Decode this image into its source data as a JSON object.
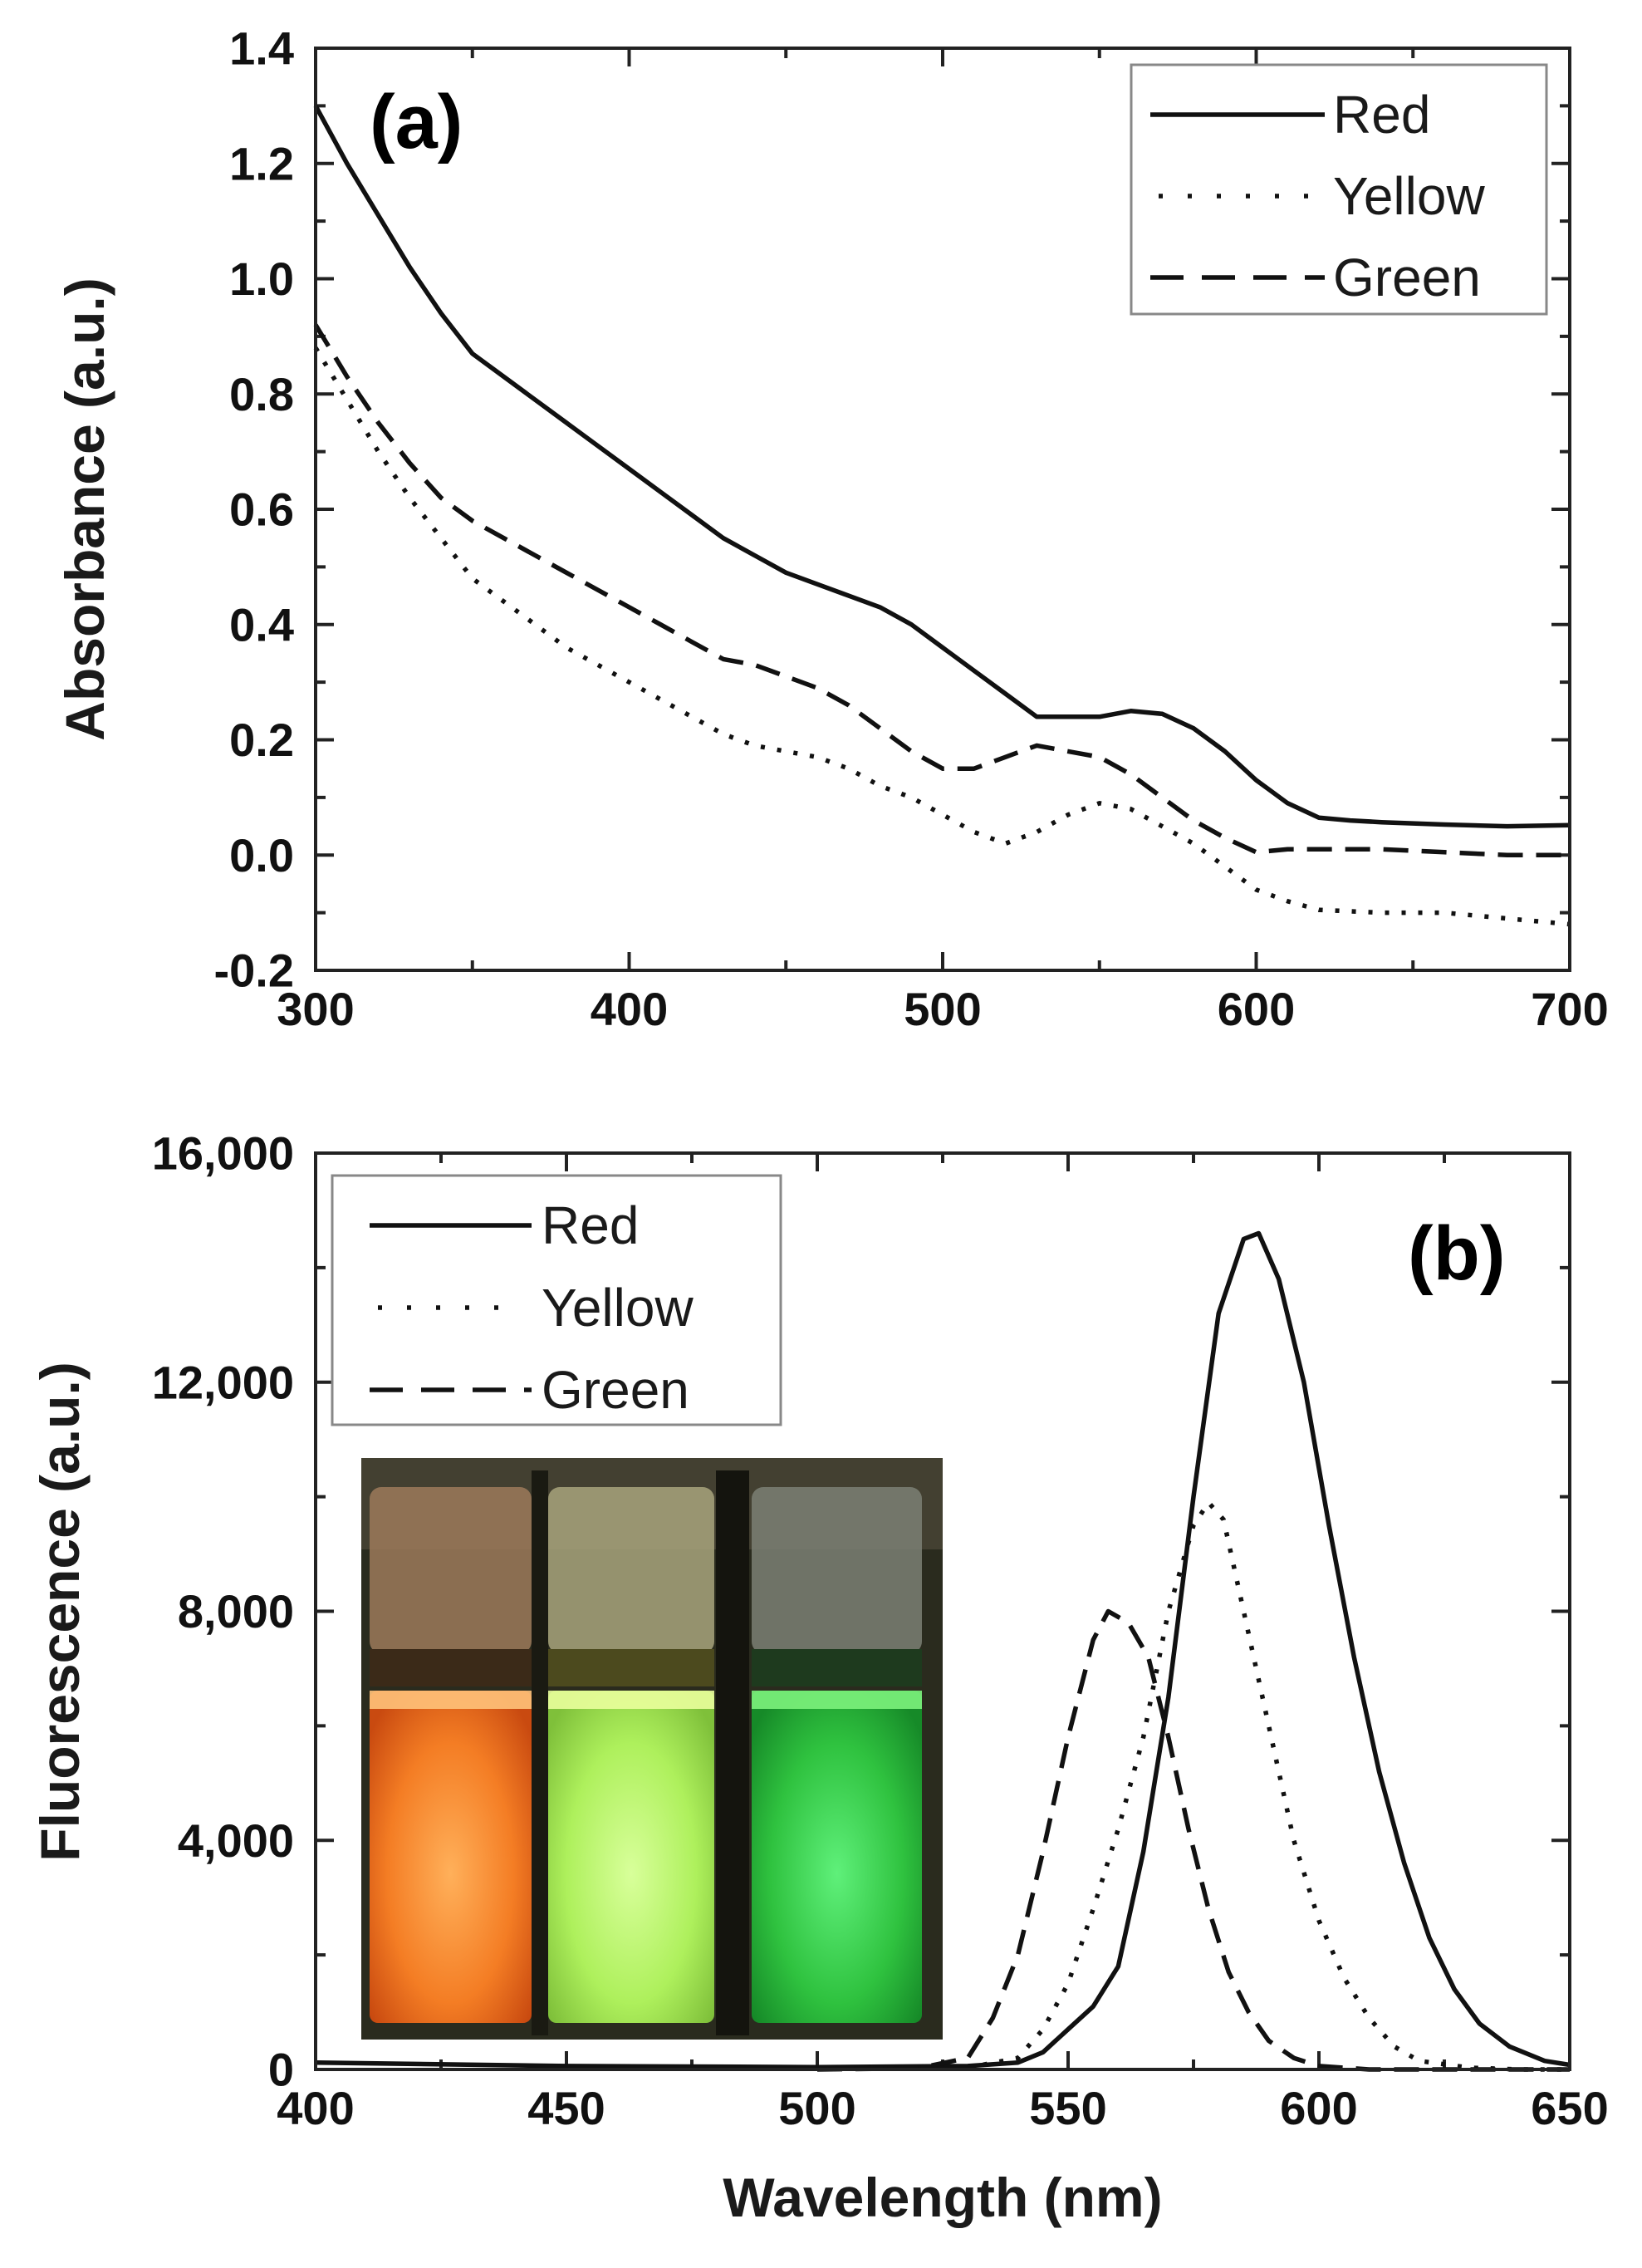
{
  "colors": {
    "line": "#111111",
    "vial_red": "#f07820",
    "vial_yellow": "#b6f25a",
    "vial_green": "#2fc23f"
  },
  "chart_data": [
    {
      "type": "line",
      "panel_label": "(a)",
      "title": "",
      "xlabel": "",
      "ylabel": "Absorbance (a.u.)",
      "xlim": [
        300,
        700
      ],
      "ylim": [
        -0.2,
        1.4
      ],
      "xticks": [
        300,
        400,
        500,
        600,
        700
      ],
      "xtick_labels": [
        "300",
        "400",
        "500",
        "600",
        "700"
      ],
      "yticks": [
        -0.2,
        0.0,
        0.2,
        0.4,
        0.6,
        0.8,
        1.0,
        1.2,
        1.4
      ],
      "ytick_labels": [
        "-0.2",
        "0.0",
        "0.2",
        "0.4",
        "0.6",
        "0.8",
        "1.0",
        "1.2",
        "1.4"
      ],
      "legend_position": "top-right",
      "series": [
        {
          "name": "Red",
          "style": "solid",
          "points": [
            [
              300,
              1.3
            ],
            [
              310,
              1.2
            ],
            [
              320,
              1.11
            ],
            [
              330,
              1.02
            ],
            [
              340,
              0.94
            ],
            [
              350,
              0.87
            ],
            [
              360,
              0.83
            ],
            [
              370,
              0.79
            ],
            [
              380,
              0.75
            ],
            [
              390,
              0.71
            ],
            [
              400,
              0.67
            ],
            [
              410,
              0.63
            ],
            [
              420,
              0.59
            ],
            [
              430,
              0.55
            ],
            [
              440,
              0.52
            ],
            [
              450,
              0.49
            ],
            [
              460,
              0.47
            ],
            [
              470,
              0.45
            ],
            [
              480,
              0.43
            ],
            [
              490,
              0.4
            ],
            [
              500,
              0.36
            ],
            [
              510,
              0.32
            ],
            [
              520,
              0.28
            ],
            [
              530,
              0.24
            ],
            [
              540,
              0.24
            ],
            [
              550,
              0.24
            ],
            [
              560,
              0.25
            ],
            [
              570,
              0.245
            ],
            [
              580,
              0.22
            ],
            [
              590,
              0.18
            ],
            [
              600,
              0.13
            ],
            [
              610,
              0.09
            ],
            [
              620,
              0.065
            ],
            [
              630,
              0.06
            ],
            [
              640,
              0.057
            ],
            [
              660,
              0.053
            ],
            [
              680,
              0.05
            ],
            [
              700,
              0.052
            ]
          ]
        },
        {
          "name": "Yellow",
          "style": "dotted",
          "points": [
            [
              300,
              0.88
            ],
            [
              310,
              0.79
            ],
            [
              320,
              0.7
            ],
            [
              330,
              0.62
            ],
            [
              340,
              0.55
            ],
            [
              350,
              0.48
            ],
            [
              360,
              0.44
            ],
            [
              370,
              0.4
            ],
            [
              380,
              0.36
            ],
            [
              390,
              0.33
            ],
            [
              400,
              0.3
            ],
            [
              410,
              0.27
            ],
            [
              420,
              0.24
            ],
            [
              430,
              0.21
            ],
            [
              440,
              0.19
            ],
            [
              450,
              0.18
            ],
            [
              460,
              0.17
            ],
            [
              470,
              0.15
            ],
            [
              480,
              0.12
            ],
            [
              490,
              0.1
            ],
            [
              500,
              0.07
            ],
            [
              510,
              0.04
            ],
            [
              520,
              0.02
            ],
            [
              530,
              0.04
            ],
            [
              540,
              0.07
            ],
            [
              550,
              0.09
            ],
            [
              560,
              0.08
            ],
            [
              570,
              0.05
            ],
            [
              580,
              0.02
            ],
            [
              590,
              -0.02
            ],
            [
              600,
              -0.06
            ],
            [
              610,
              -0.08
            ],
            [
              620,
              -0.095
            ],
            [
              640,
              -0.1
            ],
            [
              660,
              -0.1
            ],
            [
              680,
              -0.11
            ],
            [
              700,
              -0.12
            ]
          ]
        },
        {
          "name": "Green",
          "style": "dashed",
          "points": [
            [
              300,
              0.92
            ],
            [
              310,
              0.83
            ],
            [
              320,
              0.75
            ],
            [
              330,
              0.68
            ],
            [
              340,
              0.62
            ],
            [
              350,
              0.58
            ],
            [
              360,
              0.55
            ],
            [
              370,
              0.52
            ],
            [
              380,
              0.49
            ],
            [
              390,
              0.46
            ],
            [
              400,
              0.43
            ],
            [
              410,
              0.4
            ],
            [
              420,
              0.37
            ],
            [
              430,
              0.34
            ],
            [
              440,
              0.33
            ],
            [
              450,
              0.31
            ],
            [
              460,
              0.29
            ],
            [
              470,
              0.26
            ],
            [
              480,
              0.22
            ],
            [
              490,
              0.18
            ],
            [
              500,
              0.15
            ],
            [
              510,
              0.15
            ],
            [
              520,
              0.17
            ],
            [
              530,
              0.19
            ],
            [
              540,
              0.18
            ],
            [
              550,
              0.17
            ],
            [
              560,
              0.14
            ],
            [
              570,
              0.1
            ],
            [
              580,
              0.06
            ],
            [
              590,
              0.03
            ],
            [
              600,
              0.005
            ],
            [
              610,
              0.01
            ],
            [
              620,
              0.01
            ],
            [
              640,
              0.01
            ],
            [
              660,
              0.005
            ],
            [
              680,
              0.0
            ],
            [
              700,
              0.0
            ]
          ]
        }
      ]
    },
    {
      "type": "line",
      "panel_label": "(b)",
      "title": "",
      "xlabel": "Wavelength (nm)",
      "ylabel": "Fluorescence (a.u.)",
      "xlim": [
        400,
        650
      ],
      "ylim": [
        0,
        16000
      ],
      "xticks": [
        400,
        450,
        500,
        550,
        600,
        650
      ],
      "xtick_labels": [
        "400",
        "450",
        "500",
        "550",
        "600",
        "650"
      ],
      "yticks": [
        0,
        4000,
        8000,
        12000,
        16000
      ],
      "ytick_labels": [
        "0",
        "4,000",
        "8,000",
        "12,000",
        "16,000"
      ],
      "legend_position": "top-left",
      "inset": "photograph of three glowing vials: orange, yellow-green, green",
      "series": [
        {
          "name": "Red",
          "style": "solid",
          "points": [
            [
              400,
              120
            ],
            [
              450,
              60
            ],
            [
              500,
              40
            ],
            [
              530,
              60
            ],
            [
              540,
              120
            ],
            [
              545,
              300
            ],
            [
              550,
              700
            ],
            [
              555,
              1100
            ],
            [
              560,
              1800
            ],
            [
              565,
              3800
            ],
            [
              570,
              6500
            ],
            [
              575,
              10000
            ],
            [
              580,
              13200
            ],
            [
              585,
              14500
            ],
            [
              588,
              14600
            ],
            [
              592,
              13800
            ],
            [
              597,
              12000
            ],
            [
              602,
              9500
            ],
            [
              607,
              7200
            ],
            [
              612,
              5200
            ],
            [
              617,
              3600
            ],
            [
              622,
              2300
            ],
            [
              627,
              1400
            ],
            [
              632,
              800
            ],
            [
              638,
              400
            ],
            [
              645,
              150
            ],
            [
              650,
              80
            ]
          ]
        },
        {
          "name": "Yellow",
          "style": "dotted",
          "points": [
            [
              500,
              20
            ],
            [
              530,
              30
            ],
            [
              540,
              200
            ],
            [
              545,
              700
            ],
            [
              550,
              1500
            ],
            [
              555,
              2800
            ],
            [
              560,
              4200
            ],
            [
              565,
              5800
            ],
            [
              570,
              8000
            ],
            [
              575,
              9500
            ],
            [
              578,
              9900
            ],
            [
              581,
              9600
            ],
            [
              585,
              8000
            ],
            [
              590,
              6000
            ],
            [
              595,
              4000
            ],
            [
              600,
              2600
            ],
            [
              605,
              1600
            ],
            [
              610,
              900
            ],
            [
              615,
              400
            ],
            [
              620,
              150
            ],
            [
              630,
              30
            ],
            [
              640,
              0
            ],
            [
              650,
              0
            ]
          ]
        },
        {
          "name": "Green",
          "style": "dashed",
          "points": [
            [
              500,
              0
            ],
            [
              520,
              20
            ],
            [
              530,
              200
            ],
            [
              535,
              900
            ],
            [
              540,
              2000
            ],
            [
              545,
              3800
            ],
            [
              550,
              5800
            ],
            [
              555,
              7500
            ],
            [
              558,
              8000
            ],
            [
              562,
              7800
            ],
            [
              566,
              7200
            ],
            [
              570,
              5800
            ],
            [
              574,
              4200
            ],
            [
              578,
              2800
            ],
            [
              582,
              1700
            ],
            [
              586,
              1000
            ],
            [
              590,
              500
            ],
            [
              595,
              200
            ],
            [
              600,
              60
            ],
            [
              610,
              0
            ],
            [
              650,
              0
            ]
          ]
        }
      ]
    }
  ]
}
